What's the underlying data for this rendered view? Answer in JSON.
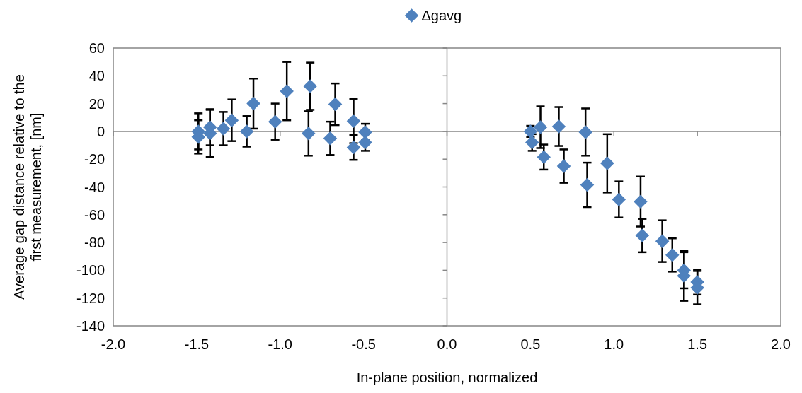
{
  "chart_data": {
    "type": "scatter",
    "xlabel": "In-plane position, normalized",
    "ylabel": "Average gap distance relative to the first measurement, [nm]",
    "xlim": [
      -2,
      2
    ],
    "xticks": [
      {
        "value": -2,
        "label": "-2.0"
      },
      {
        "value": -1.5,
        "label": "-1.5"
      },
      {
        "value": -1,
        "label": "-1.0"
      },
      {
        "value": -0.5,
        "label": "-0.5"
      },
      {
        "value": 0,
        "label": "0.0"
      },
      {
        "value": 0.5,
        "label": "0.5"
      },
      {
        "value": 1,
        "label": "1.0"
      },
      {
        "value": 1.5,
        "label": "1.5"
      },
      {
        "value": 2,
        "label": "2.0"
      }
    ],
    "ylim": [
      -140,
      60
    ],
    "yticks": [
      -140,
      -120,
      -100,
      -80,
      -60,
      -40,
      -20,
      0,
      20,
      40,
      60
    ],
    "legend": "top",
    "marker": "diamond",
    "series": [
      {
        "name": "Δgavg",
        "color": "#4f81bd",
        "x": [
          -1.49,
          -1.49,
          -1.42,
          -1.42,
          -1.34,
          -1.29,
          -1.2,
          -1.16,
          -1.03,
          -0.96,
          -0.82,
          -0.83,
          -0.67,
          -0.7,
          -0.56,
          -0.56,
          -0.49,
          -0.49,
          0.5,
          0.51,
          0.56,
          0.58,
          0.67,
          0.7,
          0.83,
          0.84,
          0.96,
          1.03,
          1.16,
          1.17,
          1.29,
          1.35,
          1.42,
          1.42,
          1.5,
          1.5
        ],
        "values": [
          0,
          -4,
          3,
          -1.5,
          2,
          8,
          0,
          20,
          7,
          29,
          32.5,
          -1.5,
          19.5,
          -5,
          7.5,
          -11.5,
          -0.5,
          -8,
          0,
          -8,
          3,
          -18.5,
          3.5,
          -25,
          -0.5,
          -38.5,
          -23,
          -49,
          -50.5,
          -75,
          -79,
          -89,
          -100,
          -104,
          -108.5,
          -112.5
        ],
        "errors": [
          13,
          12,
          13,
          17,
          12,
          15,
          11,
          18,
          13,
          21,
          17,
          16,
          15,
          12,
          16,
          9,
          6,
          6,
          4,
          6,
          15,
          9,
          14,
          12,
          17,
          16,
          21,
          13,
          18,
          12,
          15,
          12,
          13,
          18,
          9,
          12
        ]
      }
    ]
  }
}
